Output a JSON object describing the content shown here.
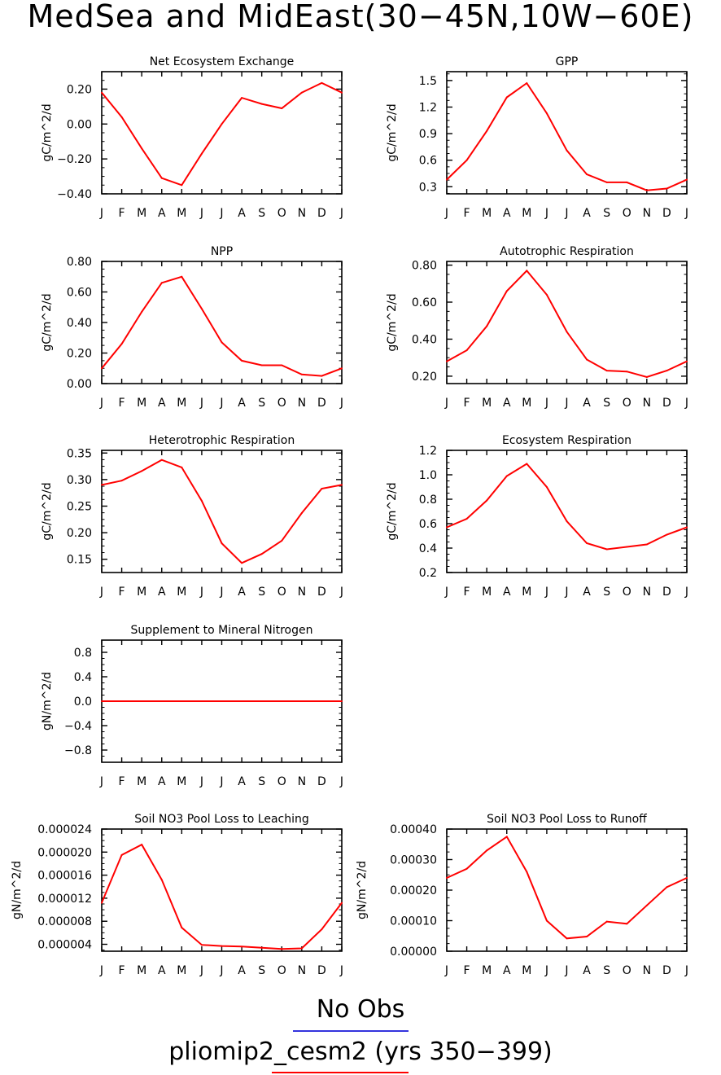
{
  "title": "MedSea and MidEast(30−45N,10W−60E)",
  "legend": {
    "obs_label": "No Obs",
    "obs_color": "#3333dd",
    "model_label": "pliomip2_cesm2 (yrs 350−399)",
    "model_color": "#ff0000"
  },
  "line_color": "#ff0000",
  "months": [
    "J",
    "F",
    "M",
    "A",
    "M",
    "J",
    "J",
    "A",
    "S",
    "O",
    "N",
    "D",
    "J"
  ],
  "chart_data": [
    {
      "type": "line",
      "title": "Net Ecosystem Exchange",
      "ylabel": "gC/m^2/d",
      "ylim": [
        -0.4,
        0.3
      ],
      "yticks": [
        "0.20",
        "0.00",
        "−0.20",
        "−0.40"
      ],
      "ytick_values": [
        0.2,
        0.0,
        -0.2,
        -0.4
      ],
      "y": [
        0.18,
        0.04,
        -0.14,
        -0.31,
        -0.35,
        -0.17,
        0.0,
        0.15,
        0.115,
        0.09,
        0.18,
        0.235,
        0.18
      ]
    },
    {
      "type": "line",
      "title": "GPP",
      "ylabel": "gC/m^2/d",
      "ylim": [
        0.22,
        1.6
      ],
      "yticks": [
        "1.5",
        "1.2",
        "0.9",
        "0.6",
        "0.3"
      ],
      "ytick_values": [
        1.5,
        1.2,
        0.9,
        0.6,
        0.3
      ],
      "y": [
        0.38,
        0.6,
        0.93,
        1.31,
        1.47,
        1.13,
        0.71,
        0.44,
        0.35,
        0.35,
        0.26,
        0.28,
        0.38
      ]
    },
    {
      "type": "line",
      "title": "NPP",
      "ylabel": "gC/m^2/d",
      "ylim": [
        0.0,
        0.8
      ],
      "yticks": [
        "0.80",
        "0.60",
        "0.40",
        "0.20",
        "0.00"
      ],
      "ytick_values": [
        0.8,
        0.6,
        0.4,
        0.2,
        0.0
      ],
      "y": [
        0.1,
        0.26,
        0.47,
        0.66,
        0.7,
        0.49,
        0.27,
        0.15,
        0.12,
        0.12,
        0.06,
        0.05,
        0.1
      ]
    },
    {
      "type": "line",
      "title": "Autotrophic Respiration",
      "ylabel": "gC/m^2/d",
      "ylim": [
        0.16,
        0.82
      ],
      "yticks": [
        "0.80",
        "0.60",
        "0.40",
        "0.20"
      ],
      "ytick_values": [
        0.8,
        0.6,
        0.4,
        0.2
      ],
      "y": [
        0.28,
        0.34,
        0.47,
        0.66,
        0.77,
        0.64,
        0.44,
        0.29,
        0.23,
        0.225,
        0.195,
        0.23,
        0.28
      ]
    },
    {
      "type": "line",
      "title": "Heterotrophic Respiration",
      "ylabel": "gC/m^2/d",
      "ylim": [
        0.125,
        0.355
      ],
      "yticks": [
        "0.35",
        "0.30",
        "0.25",
        "0.20",
        "0.15"
      ],
      "ytick_values": [
        0.35,
        0.3,
        0.25,
        0.2,
        0.15
      ],
      "y": [
        0.29,
        0.298,
        0.316,
        0.337,
        0.323,
        0.26,
        0.18,
        0.143,
        0.16,
        0.185,
        0.237,
        0.283,
        0.29
      ]
    },
    {
      "type": "line",
      "title": "Ecosystem Respiration",
      "ylabel": "gC/m^2/d",
      "ylim": [
        0.2,
        1.2
      ],
      "yticks": [
        "1.2",
        "1.0",
        "0.8",
        "0.6",
        "0.4",
        "0.2"
      ],
      "ytick_values": [
        1.2,
        1.0,
        0.8,
        0.6,
        0.4,
        0.2
      ],
      "y": [
        0.57,
        0.64,
        0.79,
        0.99,
        1.09,
        0.9,
        0.62,
        0.44,
        0.39,
        0.41,
        0.43,
        0.51,
        0.57
      ]
    },
    {
      "type": "line",
      "title": "Supplement to Mineral Nitrogen",
      "ylabel": "gN/m^2/d",
      "ylim": [
        -1.0,
        1.0
      ],
      "yticks": [
        "0.8",
        "0.4",
        "0.0",
        "−0.4",
        "−0.8"
      ],
      "ytick_values": [
        0.8,
        0.4,
        0.0,
        -0.4,
        -0.8
      ],
      "y": [
        0,
        0,
        0,
        0,
        0,
        0,
        0,
        0,
        0,
        0,
        0,
        0,
        0
      ]
    },
    {
      "type": "line",
      "title": "Soil NO3 Pool Loss to Leaching",
      "ylabel": "gN/m^2/d",
      "ylim": [
        2.8e-06,
        2.4e-05
      ],
      "yticks": [
        "0.000024",
        "0.000020",
        "0.000016",
        "0.000012",
        "0.000008",
        "0.000004"
      ],
      "ytick_values": [
        2.4e-05,
        2e-05,
        1.6e-05,
        1.2e-05,
        8e-06,
        4e-06
      ],
      "y": [
        1.12e-05,
        1.95e-05,
        2.13e-05,
        1.52e-05,
        6.9e-06,
        3.9e-06,
        3.7e-06,
        3.6e-06,
        3.4e-06,
        3.2e-06,
        3.3e-06,
        6.6e-06,
        1.12e-05
      ]
    },
    {
      "type": "line",
      "title": "Soil NO3 Pool Loss to Runoff",
      "ylabel": "gN/m^2/d",
      "ylim": [
        0.0,
        0.0004
      ],
      "yticks": [
        "0.00040",
        "0.00030",
        "0.00020",
        "0.00010",
        "0.00000"
      ],
      "ytick_values": [
        0.0004,
        0.0003,
        0.0002,
        0.0001,
        0.0
      ],
      "y": [
        0.00024,
        0.00027,
        0.00033,
        0.000375,
        0.00026,
        0.0001,
        4.2e-05,
        4.8e-05,
        9.7e-05,
        9e-05,
        0.00015,
        0.00021,
        0.00024
      ]
    }
  ]
}
